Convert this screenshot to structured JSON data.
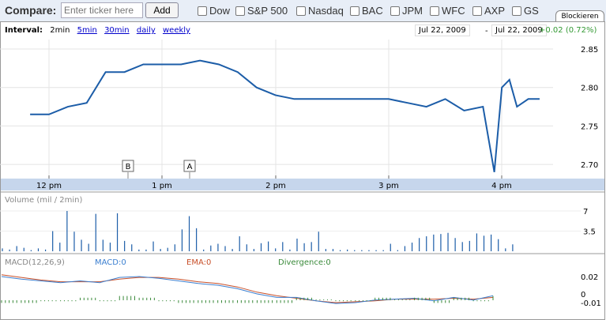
{
  "compare": {
    "label": "Compare:",
    "placeholder": "Enter ticker here",
    "add": "Add",
    "tickers": [
      "Dow",
      "S&P 500",
      "Nasdaq",
      "BAC",
      "JPM",
      "WFC",
      "AXP",
      "GS"
    ],
    "tab": "Blockieren"
  },
  "interval": {
    "label": "Interval:",
    "current": "2min",
    "links": [
      "5min",
      "30min",
      "daily",
      "weekly"
    ]
  },
  "range": {
    "from": "Jul 22, 2009",
    "sep": "-",
    "to": "Jul 22, 2009",
    "change": "+0.02 (0.72%)"
  },
  "colors": {
    "price": "#1c5da8",
    "macd": "#3b7fd0",
    "ema": "#c8502a",
    "divergence": "#3a8a3a",
    "up": "#393"
  },
  "chart_data": [
    {
      "type": "line",
      "name": "price",
      "y_ticks": [
        "2.85",
        "2.80",
        "2.75",
        "2.70"
      ],
      "ylim": [
        2.68,
        2.87
      ],
      "x_ticks": [
        "12 pm",
        "1 pm",
        "2 pm",
        "3 pm",
        "4 pm"
      ],
      "times": [
        "11:50",
        "12:00",
        "12:10",
        "12:20",
        "12:30",
        "12:40",
        "12:50",
        "13:00",
        "13:10",
        "13:20",
        "13:30",
        "13:40",
        "13:50",
        "14:00",
        "14:10",
        "14:20",
        "14:30",
        "14:40",
        "14:50",
        "15:00",
        "15:10",
        "15:20",
        "15:30",
        "15:40",
        "15:50",
        "15:56",
        "16:00",
        "16:04",
        "16:08",
        "16:14",
        "16:20"
      ],
      "values": [
        2.765,
        2.765,
        2.775,
        2.78,
        2.82,
        2.82,
        2.83,
        2.83,
        2.83,
        2.835,
        2.83,
        2.82,
        2.8,
        2.79,
        2.785,
        2.785,
        2.785,
        2.785,
        2.785,
        2.785,
        2.78,
        2.775,
        2.785,
        2.77,
        2.775,
        2.69,
        2.8,
        2.81,
        2.775,
        2.785,
        2.785
      ],
      "markers": [
        "B",
        "A"
      ]
    },
    {
      "type": "bar",
      "title": "Volume (mil / 2min)",
      "y_ticks": [
        "7",
        "3.5"
      ],
      "ylim": [
        0,
        7.5
      ],
      "values": [
        0.5,
        0.3,
        0.9,
        0.6,
        0.2,
        0.5,
        0.3,
        3.5,
        1.5,
        7.0,
        3.4,
        2.0,
        1.3,
        6.5,
        2.0,
        1.5,
        6.6,
        1.8,
        1.2,
        0.3,
        0.3,
        1.7,
        0.4,
        0.6,
        1.2,
        3.8,
        6.1,
        4.0,
        0.3,
        1.0,
        1.3,
        0.9,
        0.4,
        2.6,
        1.2,
        0.4,
        1.4,
        1.7,
        0.5,
        1.6,
        0.3,
        2.2,
        1.4,
        1.6,
        3.4,
        0.4,
        0.4,
        0.2,
        0.3,
        0.2,
        0.2,
        0.2,
        0.2,
        0.2,
        1.3,
        0.2,
        0.9,
        1.5,
        2.3,
        2.6,
        2.9,
        3.0,
        3.2,
        2.3,
        1.6,
        1.8,
        3.1,
        2.7,
        2.9,
        2.1,
        0.5,
        1.2
      ]
    },
    {
      "type": "line",
      "title": "MACD(12,26,9)",
      "labels": {
        "macd": "MACD:0",
        "ema": "EMA:0",
        "divergence": "Divergence:0"
      },
      "y_ticks": [
        "0.02",
        "0",
        "-0.01"
      ],
      "ylim": [
        -0.012,
        0.023
      ],
      "macd": [
        0.02,
        0.017,
        0.015,
        0.013,
        0.015,
        0.013,
        0.019,
        0.02,
        0.018,
        0.015,
        0.012,
        0.01,
        0.006,
        0.0,
        -0.004,
        -0.004,
        -0.008,
        -0.011,
        -0.01,
        -0.007,
        -0.006,
        -0.005,
        -0.008,
        -0.004,
        -0.007,
        -0.002
      ],
      "ema": [
        0.022,
        0.019,
        0.016,
        0.014,
        0.014,
        0.014,
        0.017,
        0.019,
        0.019,
        0.017,
        0.014,
        0.012,
        0.008,
        0.002,
        -0.002,
        -0.005,
        -0.008,
        -0.01,
        -0.009,
        -0.008,
        -0.006,
        -0.006,
        -0.006,
        -0.005,
        -0.006,
        -0.004
      ],
      "divergence": [
        -0.002,
        -0.002,
        -0.001,
        -0.001,
        0.001,
        -0.001,
        0.002,
        0.001,
        -0.001,
        -0.002,
        -0.002,
        -0.002,
        -0.002,
        -0.002,
        -0.002,
        0.001,
        0,
        -0.001,
        -0.001,
        0.001,
        0,
        0.001,
        -0.002,
        0.001,
        -0.001,
        0.002
      ]
    }
  ]
}
